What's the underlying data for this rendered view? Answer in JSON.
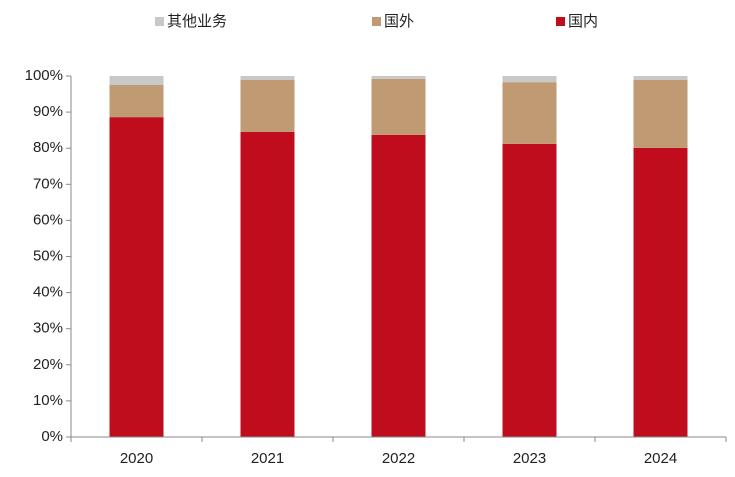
{
  "chart_data": {
    "type": "stacked_bar",
    "categories": [
      "2020",
      "2021",
      "2022",
      "2023",
      "2024"
    ],
    "series": [
      {
        "name": "其他业务",
        "color": "#c8c8c8",
        "values": [
          2.5,
          1.1,
          0.8,
          1.7,
          1.1
        ]
      },
      {
        "name": "国外",
        "color": "#bf9a72",
        "values": [
          8.9,
          14.4,
          15.5,
          17.1,
          18.8
        ]
      },
      {
        "name": "国内",
        "color": "#c00d1e",
        "values": [
          88.6,
          84.5,
          83.7,
          81.2,
          80.1
        ]
      }
    ],
    "ylim": [
      0,
      100
    ],
    "yticks": [
      {
        "value": 0,
        "label": "0%"
      },
      {
        "value": 10,
        "label": "10%"
      },
      {
        "value": 20,
        "label": "20%"
      },
      {
        "value": 30,
        "label": "30%"
      },
      {
        "value": 40,
        "label": "40%"
      },
      {
        "value": 50,
        "label": "50%"
      },
      {
        "value": 60,
        "label": "60%"
      },
      {
        "value": 70,
        "label": "70%"
      },
      {
        "value": 80,
        "label": "80%"
      },
      {
        "value": 90,
        "label": "90%"
      },
      {
        "value": 100,
        "label": "100%"
      }
    ],
    "legend": "top"
  }
}
